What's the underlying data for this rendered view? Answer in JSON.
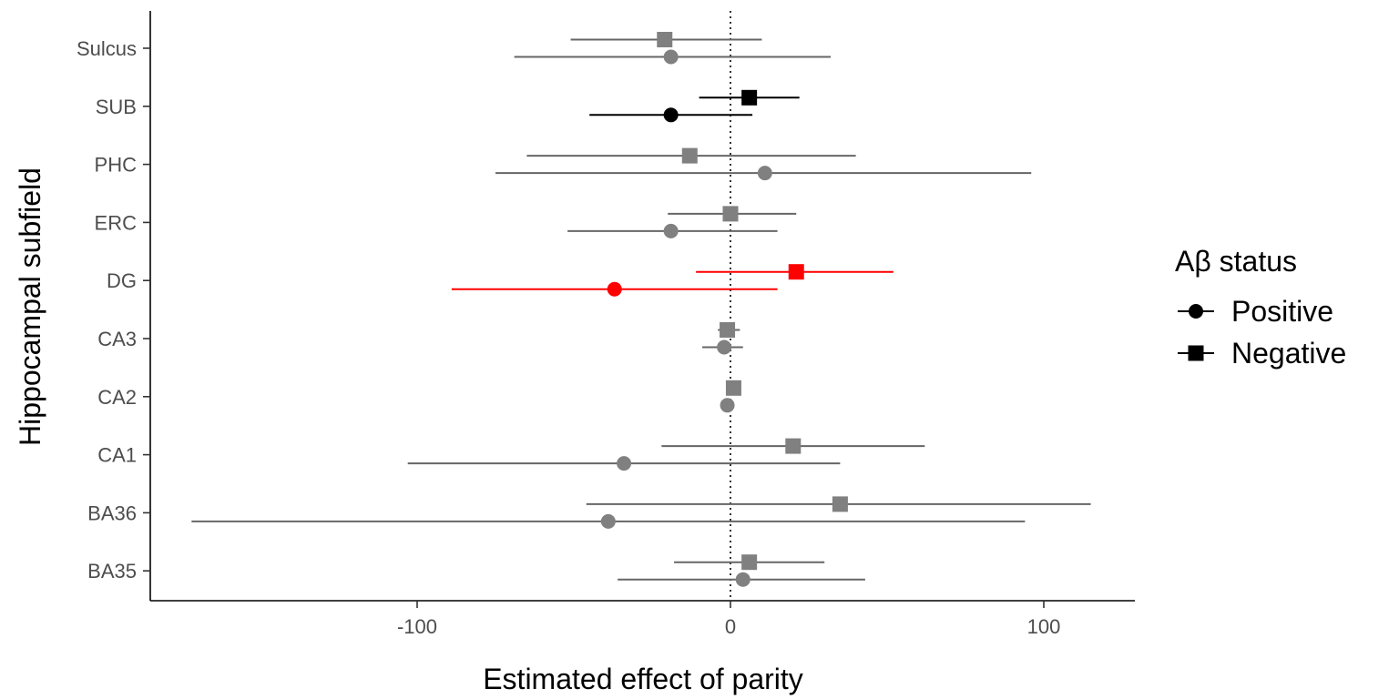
{
  "chart_data": {
    "type": "scatter",
    "title": "",
    "xlabel": "Estimated effect of parity",
    "ylabel": "Hippocampal subfield",
    "xlim": [
      -185,
      130
    ],
    "xticks": [
      -100,
      0,
      100
    ],
    "xtick_labels": [
      "-100",
      "0",
      "100"
    ],
    "reference_line_x": 0,
    "grid": false,
    "categories": [
      "Sulcus",
      "SUB",
      "PHC",
      "ERC",
      "DG",
      "CA3",
      "CA2",
      "CA1",
      "BA36",
      "BA35"
    ],
    "legend": {
      "title": "Aβ status",
      "position": "right",
      "entries": [
        {
          "label": "Positive",
          "shape": "circle"
        },
        {
          "label": "Negative",
          "shape": "square"
        }
      ]
    },
    "colors": {
      "default": "#808080",
      "significant": "#000000",
      "highlight": "#ff0000",
      "default_line": "#666666",
      "highlight_line": "#ff0000"
    },
    "series": [
      {
        "name": "Positive",
        "shape": "circle",
        "points": [
          {
            "category": "Sulcus",
            "estimate": -19,
            "lower": -69,
            "upper": 32,
            "color": "default"
          },
          {
            "category": "SUB",
            "estimate": -19,
            "lower": -45,
            "upper": 7,
            "color": "significant"
          },
          {
            "category": "PHC",
            "estimate": 11,
            "lower": -75,
            "upper": 96,
            "color": "default"
          },
          {
            "category": "ERC",
            "estimate": -19,
            "lower": -52,
            "upper": 15,
            "color": "default"
          },
          {
            "category": "DG",
            "estimate": -37,
            "lower": -89,
            "upper": 15,
            "color": "highlight"
          },
          {
            "category": "CA3",
            "estimate": -2,
            "lower": -9,
            "upper": 4,
            "color": "default"
          },
          {
            "category": "CA2",
            "estimate": -1,
            "lower": -2,
            "upper": 0,
            "color": "default"
          },
          {
            "category": "CA1",
            "estimate": -34,
            "lower": -103,
            "upper": 35,
            "color": "default"
          },
          {
            "category": "BA36",
            "estimate": -39,
            "lower": -172,
            "upper": 94,
            "color": "default"
          },
          {
            "category": "BA35",
            "estimate": 4,
            "lower": -36,
            "upper": 43,
            "color": "default"
          }
        ]
      },
      {
        "name": "Negative",
        "shape": "square",
        "points": [
          {
            "category": "Sulcus",
            "estimate": -21,
            "lower": -51,
            "upper": 10,
            "color": "default"
          },
          {
            "category": "SUB",
            "estimate": 6,
            "lower": -10,
            "upper": 22,
            "color": "significant"
          },
          {
            "category": "PHC",
            "estimate": -13,
            "lower": -65,
            "upper": 40,
            "color": "default"
          },
          {
            "category": "ERC",
            "estimate": 0,
            "lower": -20,
            "upper": 21,
            "color": "default"
          },
          {
            "category": "DG",
            "estimate": 21,
            "lower": -11,
            "upper": 52,
            "color": "highlight"
          },
          {
            "category": "CA3",
            "estimate": -1,
            "lower": -4,
            "upper": 3,
            "color": "default"
          },
          {
            "category": "CA2",
            "estimate": 1,
            "lower": 0,
            "upper": 2,
            "color": "default"
          },
          {
            "category": "CA1",
            "estimate": 20,
            "lower": -22,
            "upper": 62,
            "color": "default"
          },
          {
            "category": "BA36",
            "estimate": 35,
            "lower": -46,
            "upper": 115,
            "color": "default"
          },
          {
            "category": "BA35",
            "estimate": 6,
            "lower": -18,
            "upper": 30,
            "color": "default"
          }
        ]
      }
    ]
  }
}
